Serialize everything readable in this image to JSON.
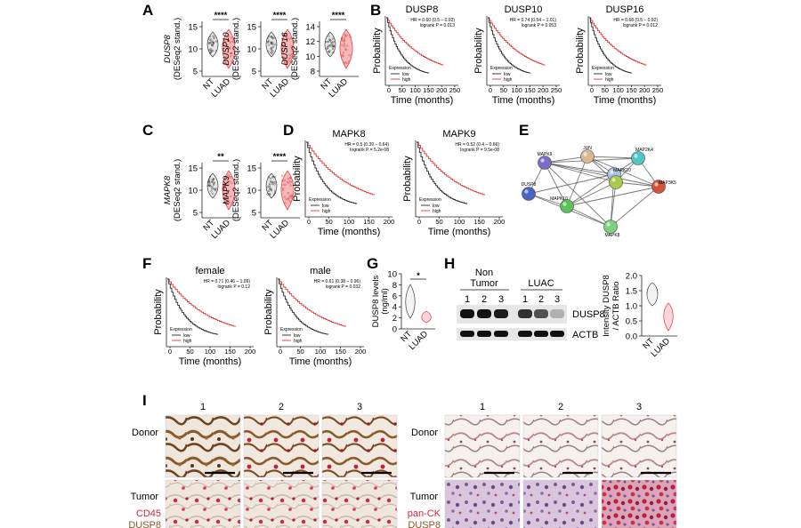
{
  "colors": {
    "nt": "#3a3a3a",
    "luad": "#e03535",
    "high": "#e03535",
    "low": "#222222"
  },
  "panels": {
    "A": {
      "label": "A",
      "violins": [
        {
          "gene": "DUSP8",
          "ylabel": "(DESeq2 stand.)",
          "ticks": [
            "5",
            "10",
            "15"
          ],
          "sig": "****",
          "groups": [
            "NT",
            "LUAD"
          ]
        },
        {
          "gene": "DUSP10",
          "ylabel": "(DESeq2 stand.)",
          "ticks": [
            "5",
            "10",
            "15"
          ],
          "sig": "****",
          "groups": [
            "NT",
            "LUAD"
          ]
        },
        {
          "gene": "DUSP16",
          "ylabel": "(DESeq2 stand.)",
          "ticks": [
            "8",
            "10",
            "12",
            "14"
          ],
          "sig": "****",
          "groups": [
            "NT",
            "LUAD"
          ]
        }
      ]
    },
    "B": {
      "label": "B",
      "km": [
        {
          "title": "DUSP8",
          "hr": "HR = 0.60 (0.5 – 0.92)",
          "p": "logrank P = 0.013"
        },
        {
          "title": "DUSP10",
          "hr": "HR = 0.74 (0.54 – 1.01)",
          "p": "logrank P = 0.053"
        },
        {
          "title": "DUSP16",
          "hr": "HR = 0.68 (0.5 – 0.92)",
          "p": "logrank P = 0.012"
        }
      ],
      "ylabel": "Probability",
      "xlabel": "Time (months)",
      "xticks": [
        "0",
        "50",
        "100",
        "150",
        "200",
        "250"
      ],
      "legend_title": "Expression",
      "legend_low": "low",
      "legend_high": "high"
    },
    "C": {
      "label": "C",
      "violins": [
        {
          "gene": "MAPK8",
          "ylabel": "(DESeq2 stand.)",
          "ticks": [
            "5",
            "10",
            "15"
          ],
          "sig": "**",
          "groups": [
            "NT",
            "LUAD"
          ]
        },
        {
          "gene": "MAPK9",
          "ylabel": "(DESeq2 stand.)",
          "ticks": [
            "5",
            "10",
            "15"
          ],
          "sig": "****",
          "groups": [
            "NT",
            "LUAD"
          ]
        }
      ]
    },
    "D": {
      "label": "D",
      "km": [
        {
          "title": "MAPK8",
          "hr": "HR = 0.5 (0.39 – 0.64)",
          "p": "logrank P = 5.2e-08"
        },
        {
          "title": "MAPK9",
          "hr": "HR = 0.52 (0.4 – 0.66)",
          "p": "logrank P = 9.5e-08"
        }
      ],
      "ylabel": "Probability",
      "xlabel": "Time (months)",
      "xticks": [
        "0",
        "50",
        "100",
        "150",
        "200"
      ],
      "legend_title": "Expression",
      "legend_low": "low",
      "legend_high": "high"
    },
    "E": {
      "label": "E",
      "nodes": [
        "MAPK9",
        "JUN",
        "MAP2K4",
        "MAPK10",
        "DUSP8",
        "MAPK10",
        "MAP3K5",
        "MAPK8"
      ]
    },
    "F": {
      "label": "F",
      "km": [
        {
          "title": "female",
          "hr": "HR = 0.71 (0.46 – 1.09)",
          "p": "logrank P = 0.12"
        },
        {
          "title": "male",
          "hr": "HR = 0.61 (0.38 – 0.96)",
          "p": "logrank P = 0.032"
        }
      ],
      "ylabel": "Probability",
      "xlabel": "Time (months)",
      "xticks": [
        "0",
        "50",
        "100",
        "150",
        "200"
      ],
      "legend_title": "Expression",
      "legend_low": "low",
      "legend_high": "high"
    },
    "G": {
      "label": "G",
      "ylabel1": "DUSP8 levels",
      "ylabel2": "(ng/ml)",
      "ticks": [
        "0",
        "2",
        "4",
        "6",
        "8",
        "10"
      ],
      "sig": "*",
      "groups": [
        "NT",
        "LUAD"
      ]
    },
    "H": {
      "label": "H",
      "group1": "Non",
      "group1b": "Tumor",
      "group2": "LUAC",
      "lanes": [
        "1",
        "2",
        "3",
        "1",
        "2",
        "3"
      ],
      "band1": "DUSP8",
      "band2": "ACTB",
      "quant_ylabel1": "Intensity DUSP8",
      "quant_ylabel2": "/ ACTB Ratio",
      "quant_ticks": [
        "0.0",
        "0.5",
        "1.0",
        "1.5",
        "2.0"
      ],
      "groups": [
        "NT",
        "LUAD"
      ]
    },
    "I": {
      "label": "I",
      "columns": [
        "1",
        "2",
        "3"
      ],
      "rows": [
        "Donor",
        "Tumor"
      ],
      "left_stain1": "CD45",
      "left_stain2": "DUSP8",
      "right_stain1": "pan-CK",
      "right_stain2": "DUSP8"
    }
  }
}
